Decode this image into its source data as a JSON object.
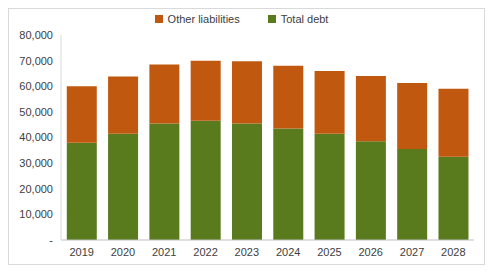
{
  "chart_data": {
    "type": "bar",
    "stacked": true,
    "grid": false,
    "legend": "top",
    "categories": [
      "2019",
      "2020",
      "2021",
      "2022",
      "2023",
      "2024",
      "2025",
      "2026",
      "2027",
      "2028"
    ],
    "series": [
      {
        "name": "Total debt",
        "color": "#5a7a1e",
        "values": [
          38000,
          41500,
          45500,
          46500,
          45500,
          43500,
          41500,
          38500,
          35500,
          32500
        ]
      },
      {
        "name": "Other liabilities",
        "color": "#c0580f",
        "values": [
          22000,
          22300,
          23000,
          23500,
          24300,
          24500,
          24500,
          25500,
          25800,
          26500
        ]
      }
    ],
    "ylim": [
      0,
      80000
    ],
    "yticks": [
      {
        "value": 0,
        "label": "-"
      },
      {
        "value": 10000,
        "label": "10,000"
      },
      {
        "value": 20000,
        "label": "20,000"
      },
      {
        "value": 30000,
        "label": "30,000"
      },
      {
        "value": 40000,
        "label": "40,000"
      },
      {
        "value": 50000,
        "label": "50,000"
      },
      {
        "value": 60000,
        "label": "60,000"
      },
      {
        "value": 70000,
        "label": "70,000"
      },
      {
        "value": 80000,
        "label": "80,000"
      }
    ]
  }
}
